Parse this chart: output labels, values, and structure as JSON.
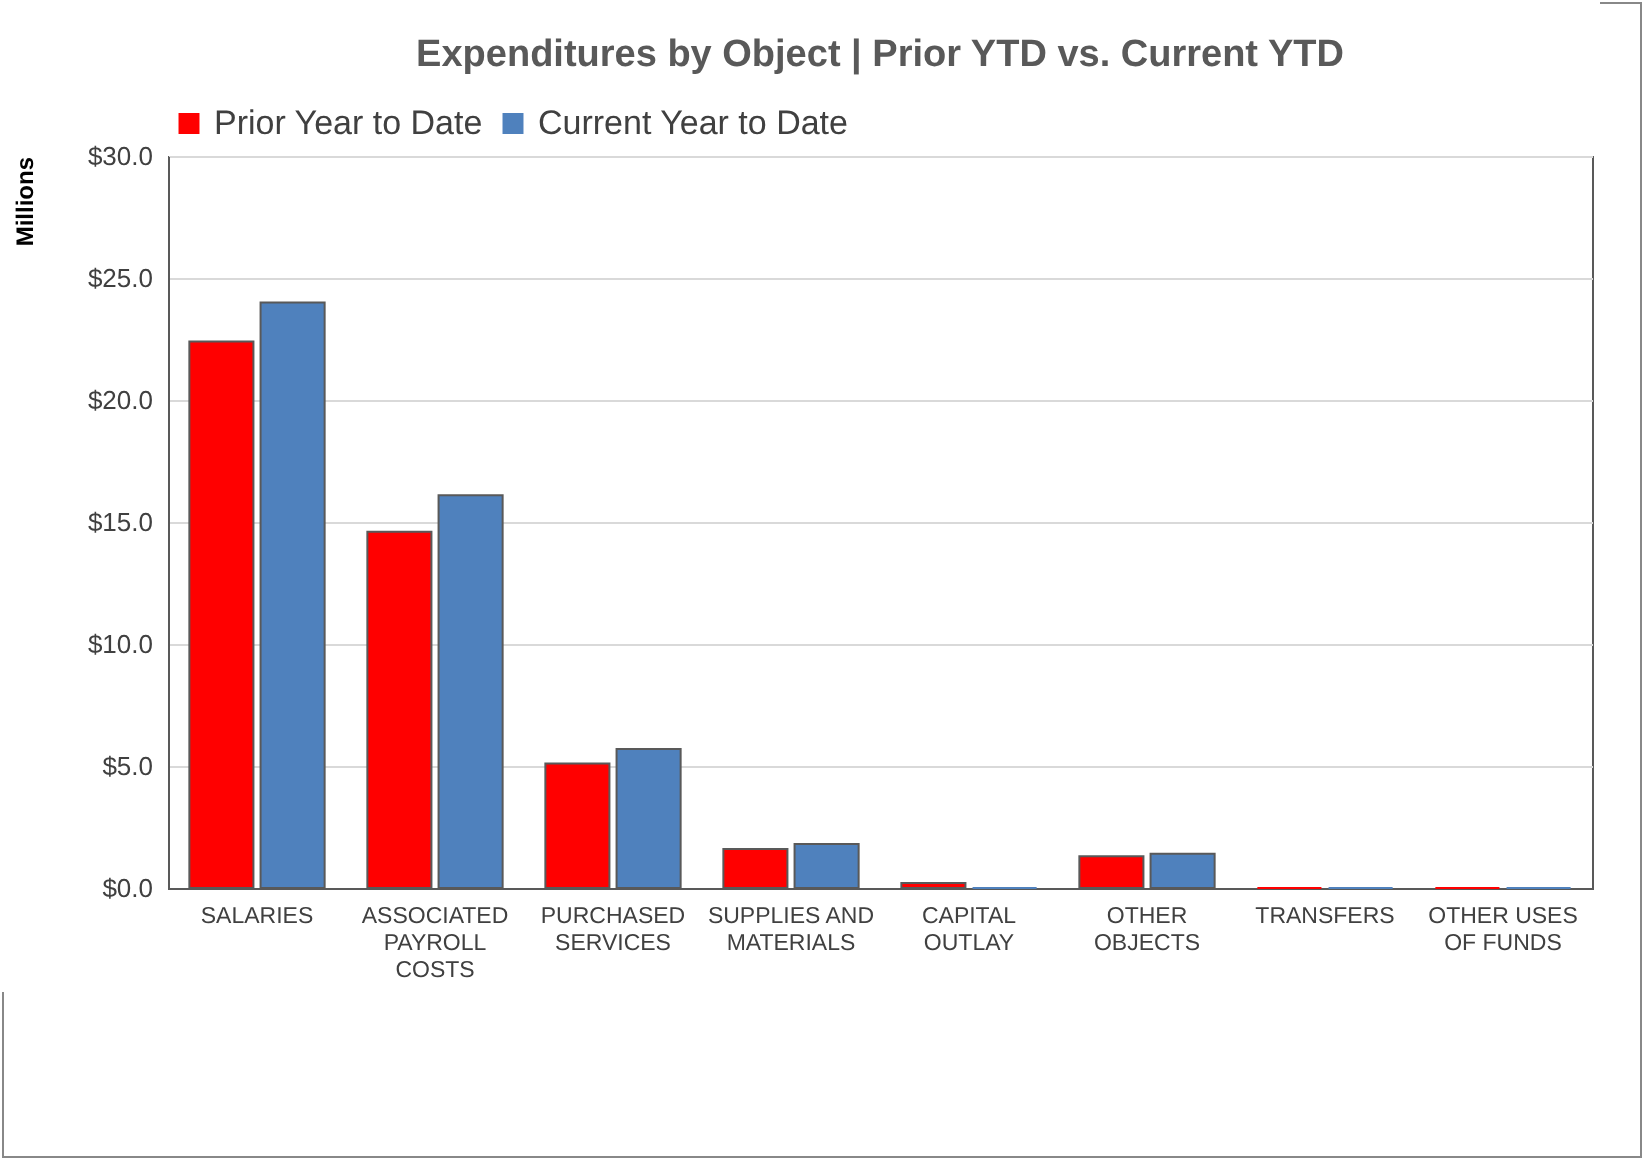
{
  "chart_data": {
    "type": "bar",
    "title": "Expenditures by Object | Prior YTD vs. Current YTD",
    "ylabel": "Millions",
    "categories": [
      "SALARIES",
      "ASSOCIATED PAYROLL COSTS",
      "PURCHASED SERVICES",
      "SUPPLIES AND MATERIALS",
      "CAPITAL OUTLAY",
      "OTHER OBJECTS",
      "TRANSFERS",
      "OTHER USES OF FUNDS"
    ],
    "series": [
      {
        "name": "Prior Year to Date",
        "color": "#ff0000",
        "values": [
          22.4,
          14.6,
          5.1,
          1.6,
          0.2,
          1.3,
          0,
          0
        ]
      },
      {
        "name": "Current Year to Date",
        "color": "#4f81bd",
        "values": [
          24.0,
          16.1,
          5.7,
          1.8,
          0,
          1.4,
          0,
          0
        ]
      }
    ],
    "ylim": [
      0,
      30
    ],
    "yticks": [
      {
        "value": 0,
        "label": "$0.0"
      },
      {
        "value": 5,
        "label": "$5.0"
      },
      {
        "value": 10,
        "label": "$10.0"
      },
      {
        "value": 15,
        "label": "$15.0"
      },
      {
        "value": 20,
        "label": "$20.0"
      },
      {
        "value": 25,
        "label": "$25.0"
      },
      {
        "value": 30,
        "label": "$30.0"
      }
    ],
    "grid": "y",
    "legend": "top"
  }
}
